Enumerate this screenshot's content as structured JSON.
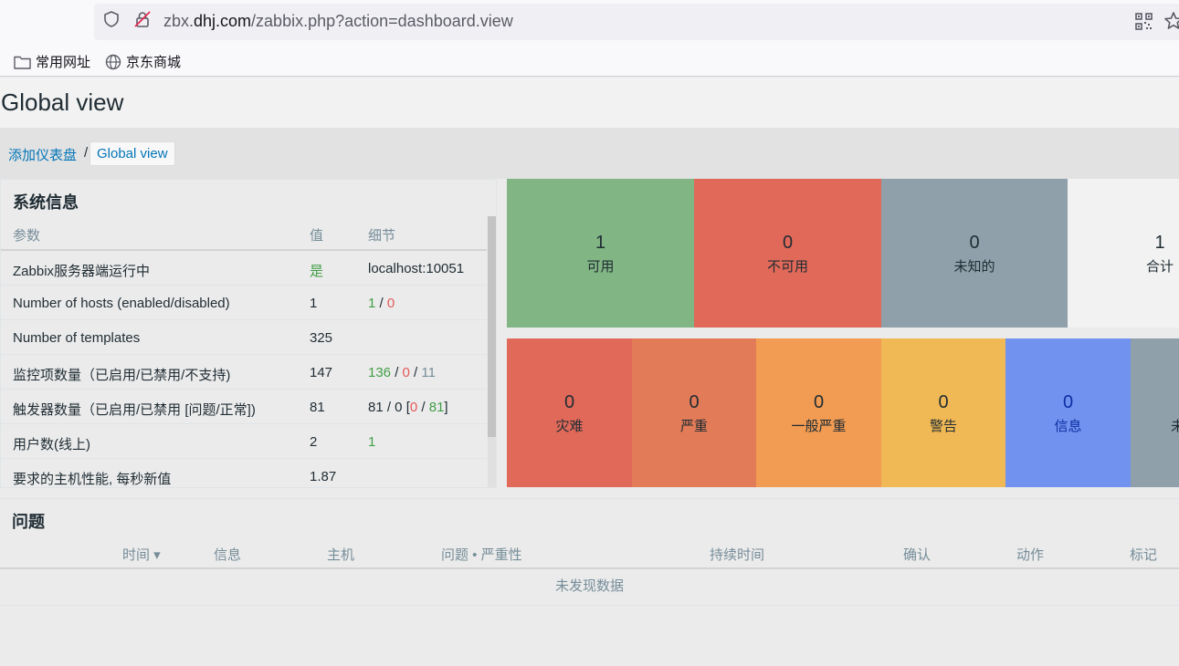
{
  "browser": {
    "url_prefix": "zbx.",
    "url_domain": "dhj.com",
    "url_path": "/zabbix.php?action=dashboard.view",
    "bookmarks": [
      {
        "label": "常用网址",
        "icon": "folder-icon"
      },
      {
        "label": "京东商城",
        "icon": "globe-icon"
      }
    ]
  },
  "page": {
    "title": "Global view"
  },
  "breadcrumb": {
    "parent": "添加仪表盘",
    "separator": "/",
    "current": "Global view"
  },
  "system_info": {
    "title": "系统信息",
    "headers": [
      "参数",
      "值",
      "细节"
    ],
    "rows": [
      {
        "param": "Zabbix服务器端运行中",
        "value": "是",
        "detail": "localhost:10051"
      },
      {
        "param": "Number of hosts (enabled/disabled)",
        "value": "1",
        "detail_a": "1",
        "detail_b": "0"
      },
      {
        "param": "Number of templates",
        "value": "325",
        "detail": ""
      },
      {
        "param": "监控项数量（已启用/已禁用/不支持)",
        "value": "147",
        "detail_a": "136",
        "detail_b": "0",
        "detail_c": "11"
      },
      {
        "param": "触发器数量（已启用/已禁用 [问题/正常])",
        "value": "81",
        "detail_a": "81 / 0 [",
        "detail_b": "0",
        "detail_c": "81",
        "detail_d": "]"
      },
      {
        "param": "用户数(线上)",
        "value": "2",
        "detail": "1"
      },
      {
        "param": "要求的主机性能, 每秒新值",
        "value": "1.87",
        "detail": ""
      }
    ]
  },
  "host_availability": [
    {
      "count": "1",
      "label": "可用",
      "color": "#81b584"
    },
    {
      "count": "0",
      "label": "不可用",
      "color": "#e06959"
    },
    {
      "count": "0",
      "label": "未知的",
      "color": "#8fa0aa"
    },
    {
      "count": "1",
      "label": "合计",
      "color": "#ebebeb"
    }
  ],
  "severity": [
    {
      "count": "0",
      "label": "灾难",
      "color": "#e06959"
    },
    {
      "count": "0",
      "label": "严重",
      "color": "#e27b57"
    },
    {
      "count": "0",
      "label": "一般严重",
      "color": "#f19b53"
    },
    {
      "count": "0",
      "label": "警告",
      "color": "#f1b955"
    },
    {
      "count": "0",
      "label": "信息",
      "color": "#7192ee"
    },
    {
      "count": "",
      "label": "未",
      "color": "#8fa0aa"
    }
  ],
  "problems": {
    "title": "问题",
    "columns": [
      "时间 ▾",
      "信息",
      "主机",
      "问题 • 严重性",
      "持续时间",
      "确认",
      "动作",
      "标记"
    ],
    "empty": "未发现数据"
  }
}
